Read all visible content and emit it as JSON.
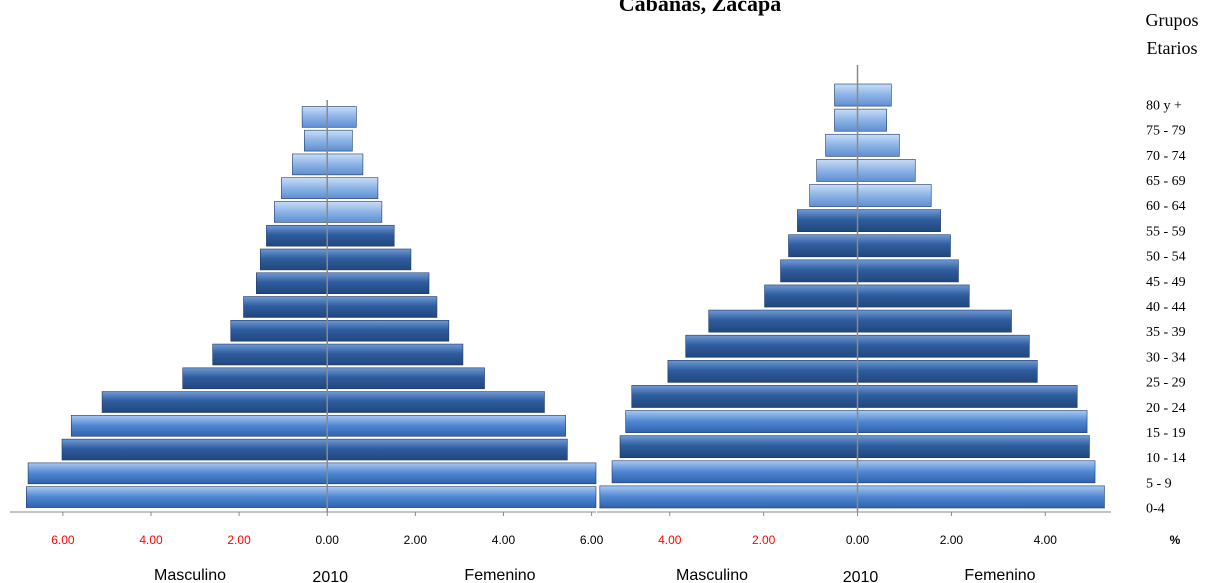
{
  "title": "Cabañas, Zacapa",
  "legend_title": [
    "Grupos",
    "Etarios"
  ],
  "unit_label": "%",
  "negative_tick_color": "#ff0000",
  "chart_data": [
    {
      "type": "pyramid",
      "xlabel": "2010",
      "xlim": [
        -7.2,
        6.1
      ],
      "xticks": [
        {
          "value": -6,
          "label": "6.00"
        },
        {
          "value": -4,
          "label": "4.00"
        },
        {
          "value": -2,
          "label": "2.00"
        },
        {
          "value": 0,
          "label": "0.00"
        },
        {
          "value": 2,
          "label": "2.00"
        },
        {
          "value": 4,
          "label": "4.00"
        },
        {
          "value": 6,
          "label": "6.00"
        }
      ],
      "series": [
        {
          "name": "Masculino",
          "side": "left",
          "color": "#2f5d9e",
          "values": [
            6.83,
            6.79,
            6.02,
            5.81,
            5.11,
            3.28,
            2.6,
            2.19,
            1.9,
            1.61,
            1.52,
            1.38,
            1.2,
            1.04,
            0.79,
            0.52,
            0.57
          ]
        },
        {
          "name": "Femenino",
          "side": "right",
          "color": "#2f5d9e",
          "values": [
            6.1,
            6.1,
            5.45,
            5.41,
            4.93,
            3.57,
            3.08,
            2.76,
            2.49,
            2.31,
            1.9,
            1.52,
            1.24,
            1.15,
            0.81,
            0.57,
            0.66
          ]
        }
      ]
    },
    {
      "type": "pyramid",
      "xlabel": "2010",
      "xlim": [
        -5.55,
        5.4
      ],
      "categories": [
        "0-4",
        "5 - 9",
        "10 - 14",
        "15 - 19",
        "20 - 24",
        "25 - 29",
        "30 - 34",
        "35 - 39",
        "40 - 44",
        "45 - 49",
        "50 - 54",
        "55 - 59",
        "60 - 64",
        "65 - 69",
        "70 - 74",
        "75 - 79",
        "80 y +"
      ],
      "xticks": [
        {
          "value": -4,
          "label": "4.00"
        },
        {
          "value": -2,
          "label": "2.00"
        },
        {
          "value": 0,
          "label": "0.00"
        },
        {
          "value": 2,
          "label": "2.00"
        },
        {
          "value": 4,
          "label": "4.00"
        }
      ],
      "series": [
        {
          "name": "Masculino",
          "side": "left",
          "color": "#2f5d9e",
          "values": [
            5.49,
            5.23,
            5.06,
            4.94,
            4.81,
            4.04,
            3.66,
            3.17,
            1.98,
            1.64,
            1.47,
            1.28,
            1.02,
            0.87,
            0.68,
            0.49,
            0.49
          ]
        },
        {
          "name": "Femenino",
          "side": "right",
          "color": "#2f5d9e",
          "values": [
            5.26,
            5.06,
            4.94,
            4.89,
            4.68,
            3.83,
            3.66,
            3.28,
            2.38,
            2.15,
            1.98,
            1.77,
            1.57,
            1.23,
            0.89,
            0.62,
            0.72
          ]
        }
      ]
    }
  ]
}
